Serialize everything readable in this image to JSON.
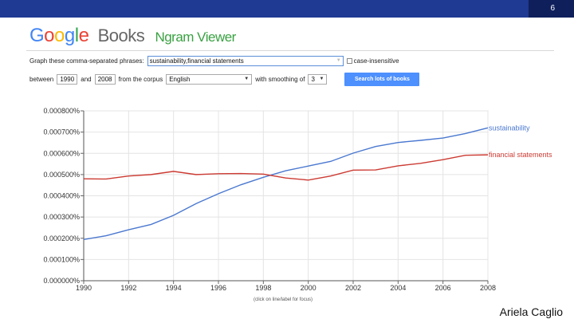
{
  "slide": {
    "number": "6",
    "author": "Ariela Caglio"
  },
  "logo": {
    "google": [
      "G",
      "o",
      "o",
      "g",
      "l",
      "e"
    ],
    "books": "Books",
    "viewer": "Ngram Viewer"
  },
  "form": {
    "phrases_label": "Graph these comma-separated phrases:",
    "phrases_value": "sustainability,financial statements",
    "case_label": "case-insensitive",
    "between_label": "between",
    "start_year": "1990",
    "and_label": "and",
    "end_year": "2008",
    "corpus_label": "from the corpus",
    "corpus": "English",
    "smoothing_label": "with smoothing of",
    "smoothing": "3",
    "search_button": "Search lots of books"
  },
  "caption": "(click on line/label for focus)",
  "colors": {
    "sustainability": "#4a78d0",
    "financial": "#cc3b33",
    "button": "#4d90fe",
    "topbar": "#1f3a93"
  },
  "chart_data": {
    "type": "line",
    "x": [
      1990,
      1991,
      1992,
      1993,
      1994,
      1995,
      1996,
      1997,
      1998,
      1999,
      2000,
      2001,
      2002,
      2003,
      2004,
      2005,
      2006,
      2007,
      2008
    ],
    "series": [
      {
        "name": "sustainability",
        "values": [
          0.000194,
          0.000212,
          0.00024,
          0.000265,
          0.000308,
          0.000363,
          0.00041,
          0.000452,
          0.000487,
          0.000518,
          0.00054,
          0.000562,
          0.000601,
          0.000632,
          0.000651,
          0.000661,
          0.000672,
          0.000693,
          0.00072
        ]
      },
      {
        "name": "financial statements",
        "values": [
          0.00048,
          0.000479,
          0.000493,
          0.0005,
          0.000515,
          0.0005,
          0.000504,
          0.000505,
          0.000502,
          0.000484,
          0.000474,
          0.000493,
          0.000521,
          0.000522,
          0.000541,
          0.000553,
          0.00057,
          0.000591,
          0.000593
        ]
      }
    ],
    "yticks": [
      "0.000000%",
      "0.000100%",
      "0.000200%",
      "0.000300%",
      "0.000400%",
      "0.000500%",
      "0.000600%",
      "0.000700%",
      "0.000800%"
    ],
    "xticks": [
      "1990",
      "1992",
      "1994",
      "1996",
      "1998",
      "2000",
      "2002",
      "2004",
      "2006",
      "2008"
    ],
    "xlim": [
      1990,
      2008
    ],
    "ylim": [
      0,
      0.0008
    ],
    "grid": true,
    "legend": "right, at line ends"
  }
}
